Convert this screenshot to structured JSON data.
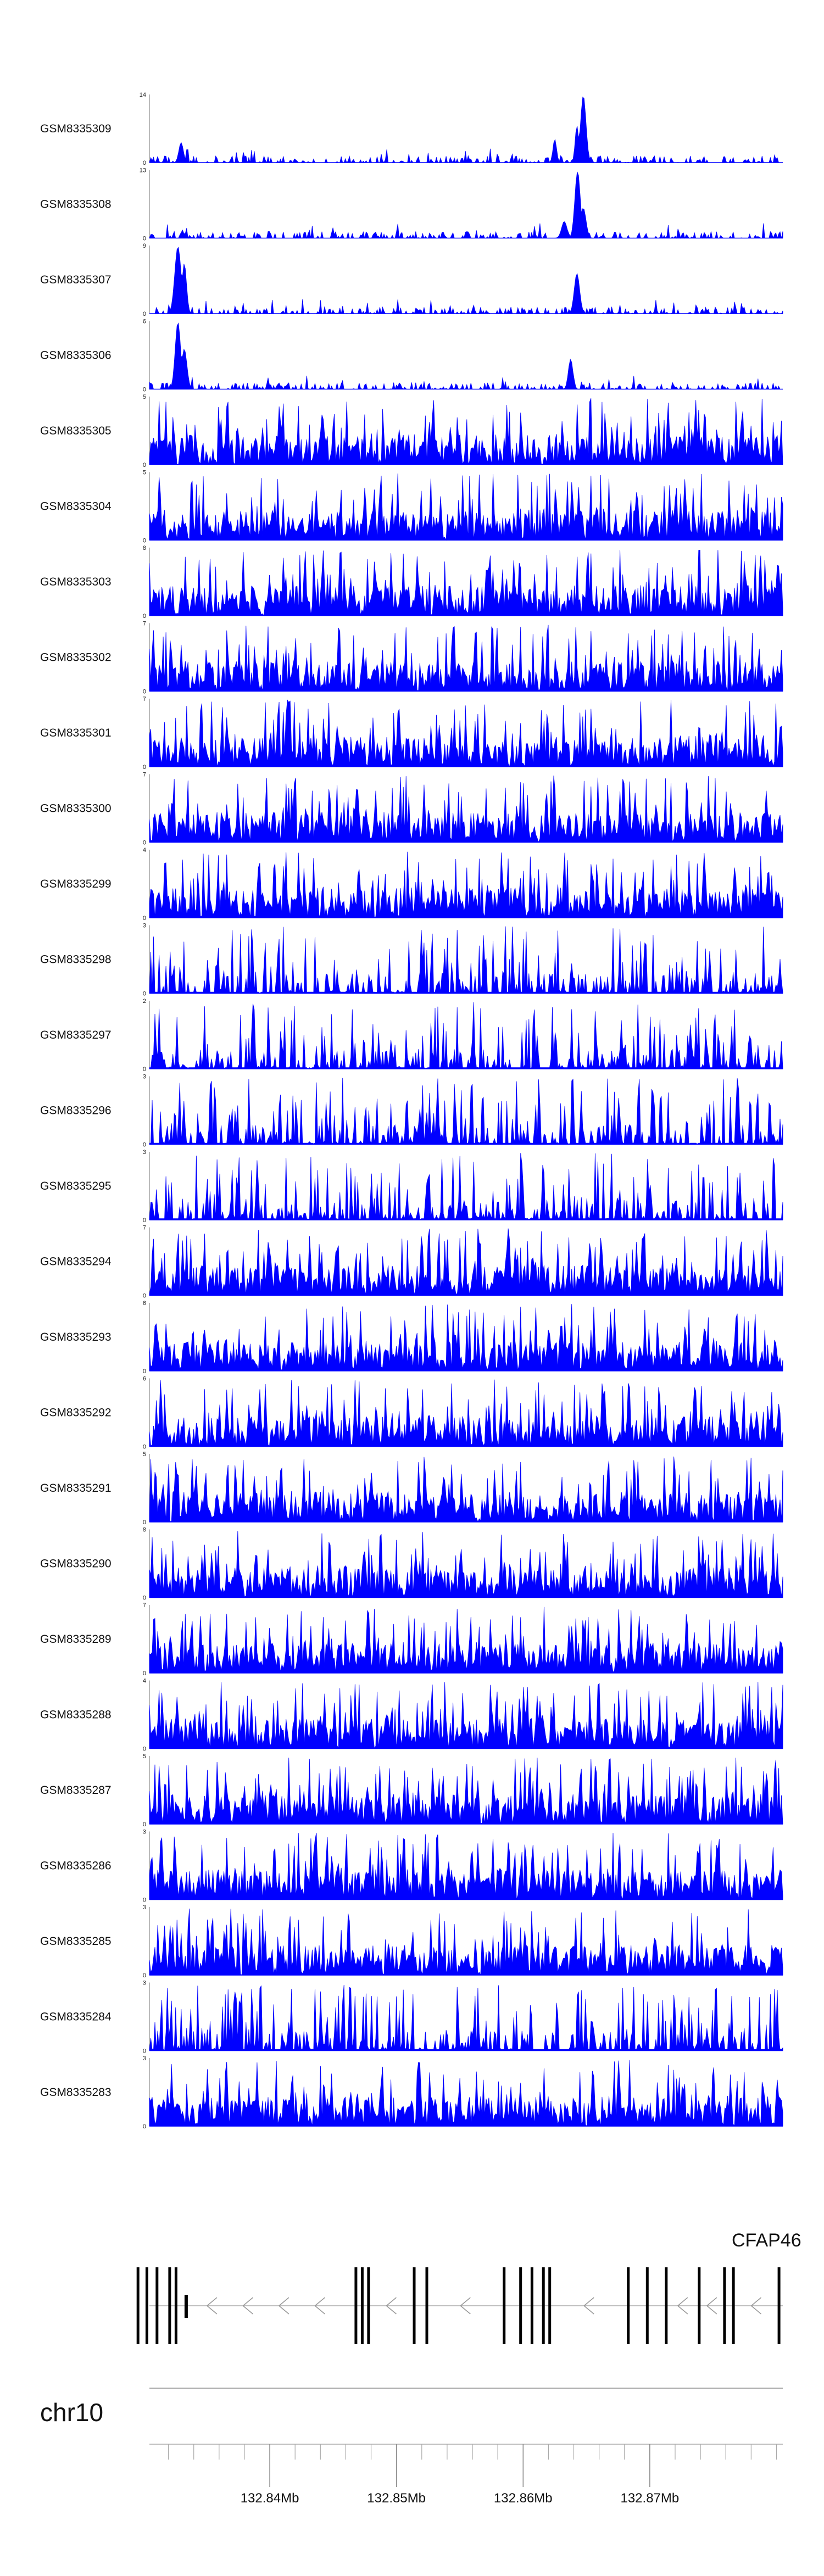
{
  "chart_data": {
    "type": "area",
    "color": "#0000ff",
    "tracks": [
      {
        "name": "GSM8335309",
        "ymax": 14,
        "seed": 309,
        "style": "sparse",
        "peaks": [
          {
            "pos": 0.685,
            "height": 1.0,
            "width": 0.006
          },
          {
            "pos": 0.675,
            "height": 0.55,
            "width": 0.004
          },
          {
            "pos": 0.64,
            "height": 0.35,
            "width": 0.004
          },
          {
            "pos": 0.05,
            "height": 0.3,
            "width": 0.005
          }
        ]
      },
      {
        "name": "GSM8335308",
        "ymax": 13,
        "seed": 308,
        "style": "sparse",
        "peaks": [
          {
            "pos": 0.676,
            "height": 1.0,
            "width": 0.006
          },
          {
            "pos": 0.685,
            "height": 0.45,
            "width": 0.006
          },
          {
            "pos": 0.655,
            "height": 0.25,
            "width": 0.006
          }
        ]
      },
      {
        "name": "GSM8335307",
        "ymax": 9,
        "seed": 307,
        "style": "sparse",
        "peaks": [
          {
            "pos": 0.045,
            "height": 1.0,
            "width": 0.007
          },
          {
            "pos": 0.055,
            "height": 0.75,
            "width": 0.005
          },
          {
            "pos": 0.675,
            "height": 0.6,
            "width": 0.006
          }
        ]
      },
      {
        "name": "GSM8335306",
        "ymax": 6,
        "seed": 306,
        "style": "sparse",
        "peaks": [
          {
            "pos": 0.045,
            "height": 1.0,
            "width": 0.006
          },
          {
            "pos": 0.055,
            "height": 0.6,
            "width": 0.006
          },
          {
            "pos": 0.665,
            "height": 0.45,
            "width": 0.005
          }
        ]
      },
      {
        "name": "GSM8335305",
        "ymax": 5,
        "seed": 305,
        "style": "dense",
        "peaks": []
      },
      {
        "name": "GSM8335304",
        "ymax": 5,
        "seed": 304,
        "style": "dense",
        "peaks": []
      },
      {
        "name": "GSM8335303",
        "ymax": 8,
        "seed": 303,
        "style": "dense",
        "peaks": []
      },
      {
        "name": "GSM8335302",
        "ymax": 7,
        "seed": 302,
        "style": "dense",
        "peaks": []
      },
      {
        "name": "GSM8335301",
        "ymax": 7,
        "seed": 301,
        "style": "dense",
        "peaks": []
      },
      {
        "name": "GSM8335300",
        "ymax": 7,
        "seed": 300,
        "style": "dense",
        "peaks": []
      },
      {
        "name": "GSM8335299",
        "ymax": 4,
        "seed": 299,
        "style": "dense",
        "peaks": []
      },
      {
        "name": "GSM8335298",
        "ymax": 3,
        "seed": 298,
        "style": "spiky",
        "peaks": []
      },
      {
        "name": "GSM8335297",
        "ymax": 2,
        "seed": 297,
        "style": "spiky",
        "peaks": []
      },
      {
        "name": "GSM8335296",
        "ymax": 3,
        "seed": 296,
        "style": "spiky",
        "peaks": []
      },
      {
        "name": "GSM8335295",
        "ymax": 3,
        "seed": 295,
        "style": "spiky",
        "peaks": []
      },
      {
        "name": "GSM8335294",
        "ymax": 7,
        "seed": 294,
        "style": "dense",
        "peaks": []
      },
      {
        "name": "GSM8335293",
        "ymax": 6,
        "seed": 293,
        "style": "dense",
        "peaks": []
      },
      {
        "name": "GSM8335292",
        "ymax": 6,
        "seed": 292,
        "style": "dense",
        "peaks": []
      },
      {
        "name": "GSM8335291",
        "ymax": 5,
        "seed": 291,
        "style": "dense",
        "peaks": []
      },
      {
        "name": "GSM8335290",
        "ymax": 8,
        "seed": 290,
        "style": "dense",
        "peaks": []
      },
      {
        "name": "GSM8335289",
        "ymax": 7,
        "seed": 289,
        "style": "dense",
        "peaks": []
      },
      {
        "name": "GSM8335288",
        "ymax": 4,
        "seed": 288,
        "style": "dense",
        "peaks": []
      },
      {
        "name": "GSM8335287",
        "ymax": 5,
        "seed": 287,
        "style": "dense",
        "peaks": []
      },
      {
        "name": "GSM8335286",
        "ymax": 3,
        "seed": 286,
        "style": "dense",
        "peaks": []
      },
      {
        "name": "GSM8335285",
        "ymax": 3,
        "seed": 285,
        "style": "dense",
        "peaks": []
      },
      {
        "name": "GSM8335284",
        "ymax": 3,
        "seed": 284,
        "style": "spiky",
        "peaks": []
      },
      {
        "name": "GSM8335283",
        "ymax": 3,
        "seed": 283,
        "style": "dense",
        "peaks": []
      }
    ],
    "gene": {
      "name": "CFAP46",
      "strand": "-",
      "exons": [
        132.8296,
        132.8303,
        132.8311,
        132.8321,
        132.8326,
        132.8468,
        132.8473,
        132.8478,
        132.8514,
        132.8524,
        132.8585,
        132.8598,
        132.8607,
        132.8616,
        132.8621,
        132.8683,
        132.8698,
        132.8713,
        132.8739,
        132.8759,
        132.8766,
        132.8802
      ]
    },
    "chromosome": "chr10",
    "xlim": [
      132.8305,
      132.8805
    ],
    "ticks": [
      132.84,
      132.85,
      132.86,
      132.87
    ],
    "tick_labels": [
      "132.84Mb",
      "132.85Mb",
      "132.86Mb",
      "132.87Mb"
    ],
    "minor_tick_step": 0.002
  }
}
